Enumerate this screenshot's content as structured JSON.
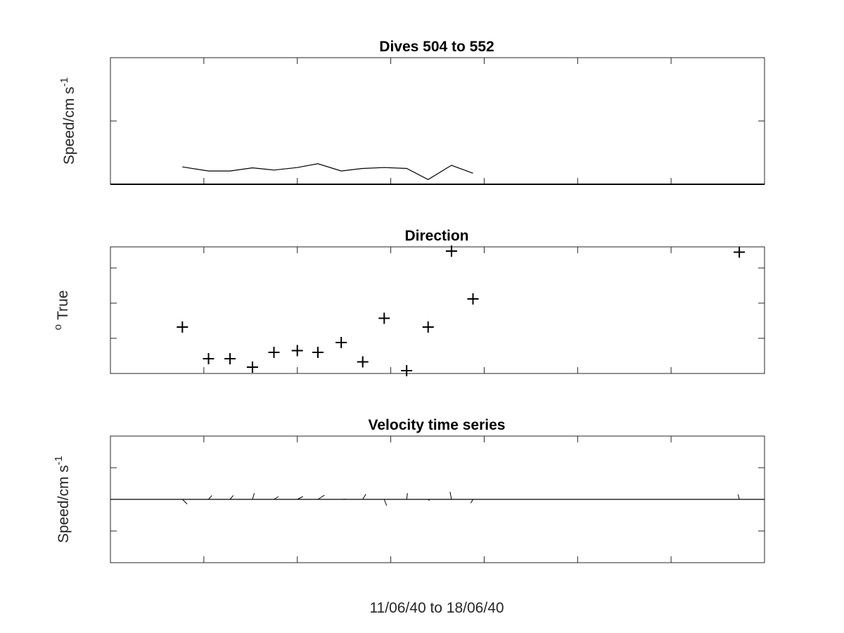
{
  "chart_data": [
    {
      "type": "line",
      "title": "Dives 504 to 552",
      "ylabel": "Speed/cm s",
      "ylabel_sup": "-1",
      "xlim": [
        12,
        19
      ],
      "ylim": [
        0,
        40
      ],
      "xticks": [
        "12",
        "13",
        "14",
        "15",
        "16",
        "17",
        "18",
        "19"
      ],
      "yticks": [
        "0",
        "20",
        "40"
      ],
      "series": [
        {
          "x": [
            12.77,
            13.05,
            13.28,
            13.52,
            13.75,
            14.0,
            14.22,
            14.47,
            14.7,
            14.93,
            15.17,
            15.4,
            15.65,
            15.88
          ],
          "y": [
            5.5,
            4.2,
            4.2,
            5.2,
            4.5,
            5.3,
            6.5,
            4.2,
            5.0,
            5.3,
            5.0,
            1.5,
            6.0,
            3.5
          ]
        }
      ],
      "zero_line": true
    },
    {
      "type": "scatter",
      "title": "Direction",
      "ylabel": "True",
      "ylabel_pre": "o",
      "xlim": [
        12,
        19
      ],
      "ylim": [
        0,
        360
      ],
      "xticks": [
        "12",
        "13",
        "14",
        "15",
        "16",
        "17",
        "18",
        "19"
      ],
      "yticks": [
        "0",
        "100",
        "200",
        "300"
      ],
      "marker": "+",
      "series": [
        {
          "x": [
            12.77,
            13.05,
            13.28,
            13.52,
            13.75,
            14.0,
            14.22,
            14.47,
            14.7,
            14.93,
            15.17,
            15.4,
            15.65,
            15.88,
            18.73
          ],
          "y": [
            132,
            42,
            42,
            18,
            60,
            65,
            60,
            88,
            33,
            157,
            8,
            132,
            348,
            212,
            345
          ]
        }
      ]
    },
    {
      "type": "line",
      "title": "Velocity time series",
      "ylabel": "Speed/cm s",
      "ylabel_sup": "-1",
      "xlabel": "11/06/40 to 18/06/40",
      "xlim": [
        12,
        19
      ],
      "ylim": [
        -50,
        50
      ],
      "xticks": [
        "12",
        "13",
        "14",
        "15",
        "16",
        "17",
        "18",
        "19"
      ],
      "yticks": [
        "-50",
        "-25",
        "0",
        "25",
        "50"
      ],
      "zero_line": true,
      "stick_units_per_x": 0.0125,
      "sticks": [
        {
          "x": 12.77,
          "speed": 5.5,
          "direction": 132
        },
        {
          "x": 13.05,
          "speed": 4.2,
          "direction": 42
        },
        {
          "x": 13.28,
          "speed": 4.2,
          "direction": 42
        },
        {
          "x": 13.52,
          "speed": 5.2,
          "direction": 18
        },
        {
          "x": 13.75,
          "speed": 4.5,
          "direction": 60
        },
        {
          "x": 14.0,
          "speed": 5.3,
          "direction": 65
        },
        {
          "x": 14.22,
          "speed": 6.5,
          "direction": 60
        },
        {
          "x": 14.47,
          "speed": 4.2,
          "direction": 88
        },
        {
          "x": 14.7,
          "speed": 5.0,
          "direction": 33
        },
        {
          "x": 14.93,
          "speed": 5.3,
          "direction": 157
        },
        {
          "x": 15.17,
          "speed": 5.0,
          "direction": 8
        },
        {
          "x": 15.4,
          "speed": 1.5,
          "direction": 132
        },
        {
          "x": 15.65,
          "speed": 6.0,
          "direction": 348
        },
        {
          "x": 15.88,
          "speed": 3.5,
          "direction": 212
        },
        {
          "x": 18.73,
          "speed": 4.0,
          "direction": 345
        }
      ]
    }
  ]
}
